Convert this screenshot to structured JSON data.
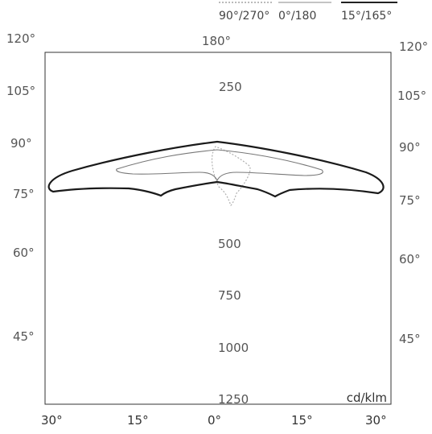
{
  "chart_data": {
    "type": "polar-photometric",
    "unit": "cd/klm",
    "legend": [
      {
        "label": "90°/270°",
        "color": "#bbbbbb",
        "style": "dotted"
      },
      {
        "label": "0°/180",
        "color": "#888888",
        "style": "solid-thin"
      },
      {
        "label": "15°/165°",
        "color": "#222222",
        "style": "solid-thick"
      }
    ],
    "top_angle_label": "180°",
    "left_angles": [
      "120°",
      "105°",
      "90°",
      "75°",
      "60°",
      "45°"
    ],
    "right_angles": [
      "120°",
      "105°",
      "90°",
      "75°",
      "60°",
      "45°"
    ],
    "bottom_angles": [
      "30°",
      "15°",
      "0°",
      "15°",
      "30°"
    ],
    "radial_labels": [
      "250",
      "500",
      "750",
      "1000",
      "1250"
    ],
    "series": [
      {
        "name": "15°/165°",
        "points": [
          [
            -45,
            18
          ],
          [
            -55,
            100
          ],
          [
            -62,
            70
          ],
          [
            -70,
            40
          ],
          [
            -75,
            45
          ],
          [
            -80,
            70
          ],
          [
            -90,
            20
          ],
          [
            -100,
            30
          ],
          [
            -110,
            20
          ],
          [
            -120,
            8
          ],
          [
            -130,
            6
          ],
          [
            -140,
            5
          ],
          [
            -150,
            4
          ],
          [
            -160,
            3
          ],
          [
            -170,
            3
          ],
          [
            180,
            3
          ],
          [
            170,
            3
          ],
          [
            160,
            3
          ],
          [
            150,
            4
          ],
          [
            140,
            5
          ],
          [
            130,
            6
          ],
          [
            120,
            8
          ],
          [
            110,
            20
          ],
          [
            100,
            30
          ],
          [
            90,
            20
          ],
          [
            80,
            70
          ],
          [
            75,
            45
          ],
          [
            70,
            40
          ],
          [
            62,
            70
          ],
          [
            55,
            100
          ],
          [
            45,
            18
          ]
        ]
      },
      {
        "name": "0°/180",
        "points": [
          [
            -45,
            15
          ],
          [
            -60,
            40
          ],
          [
            -68,
            55
          ],
          [
            -75,
            45
          ],
          [
            -82,
            60
          ],
          [
            -90,
            20
          ],
          [
            -100,
            15
          ],
          [
            -110,
            8
          ],
          [
            -120,
            5
          ],
          [
            -135,
            4
          ],
          [
            -150,
            3
          ],
          [
            -165,
            3
          ],
          [
            180,
            3
          ],
          [
            165,
            3
          ],
          [
            150,
            3
          ],
          [
            135,
            4
          ],
          [
            120,
            5
          ],
          [
            110,
            8
          ],
          [
            100,
            15
          ],
          [
            90,
            20
          ],
          [
            82,
            60
          ],
          [
            75,
            45
          ],
          [
            68,
            55
          ],
          [
            60,
            40
          ],
          [
            45,
            15
          ]
        ]
      },
      {
        "name": "90°/270°",
        "points": [
          [
            -20,
            25
          ],
          [
            -40,
            20
          ],
          [
            -60,
            15
          ],
          [
            -90,
            8
          ],
          [
            -120,
            5
          ],
          [
            -150,
            4
          ],
          [
            180,
            4
          ],
          [
            150,
            4
          ],
          [
            120,
            5
          ],
          [
            90,
            8
          ],
          [
            60,
            15
          ],
          [
            40,
            20
          ],
          [
            20,
            25
          ]
        ]
      }
    ]
  }
}
